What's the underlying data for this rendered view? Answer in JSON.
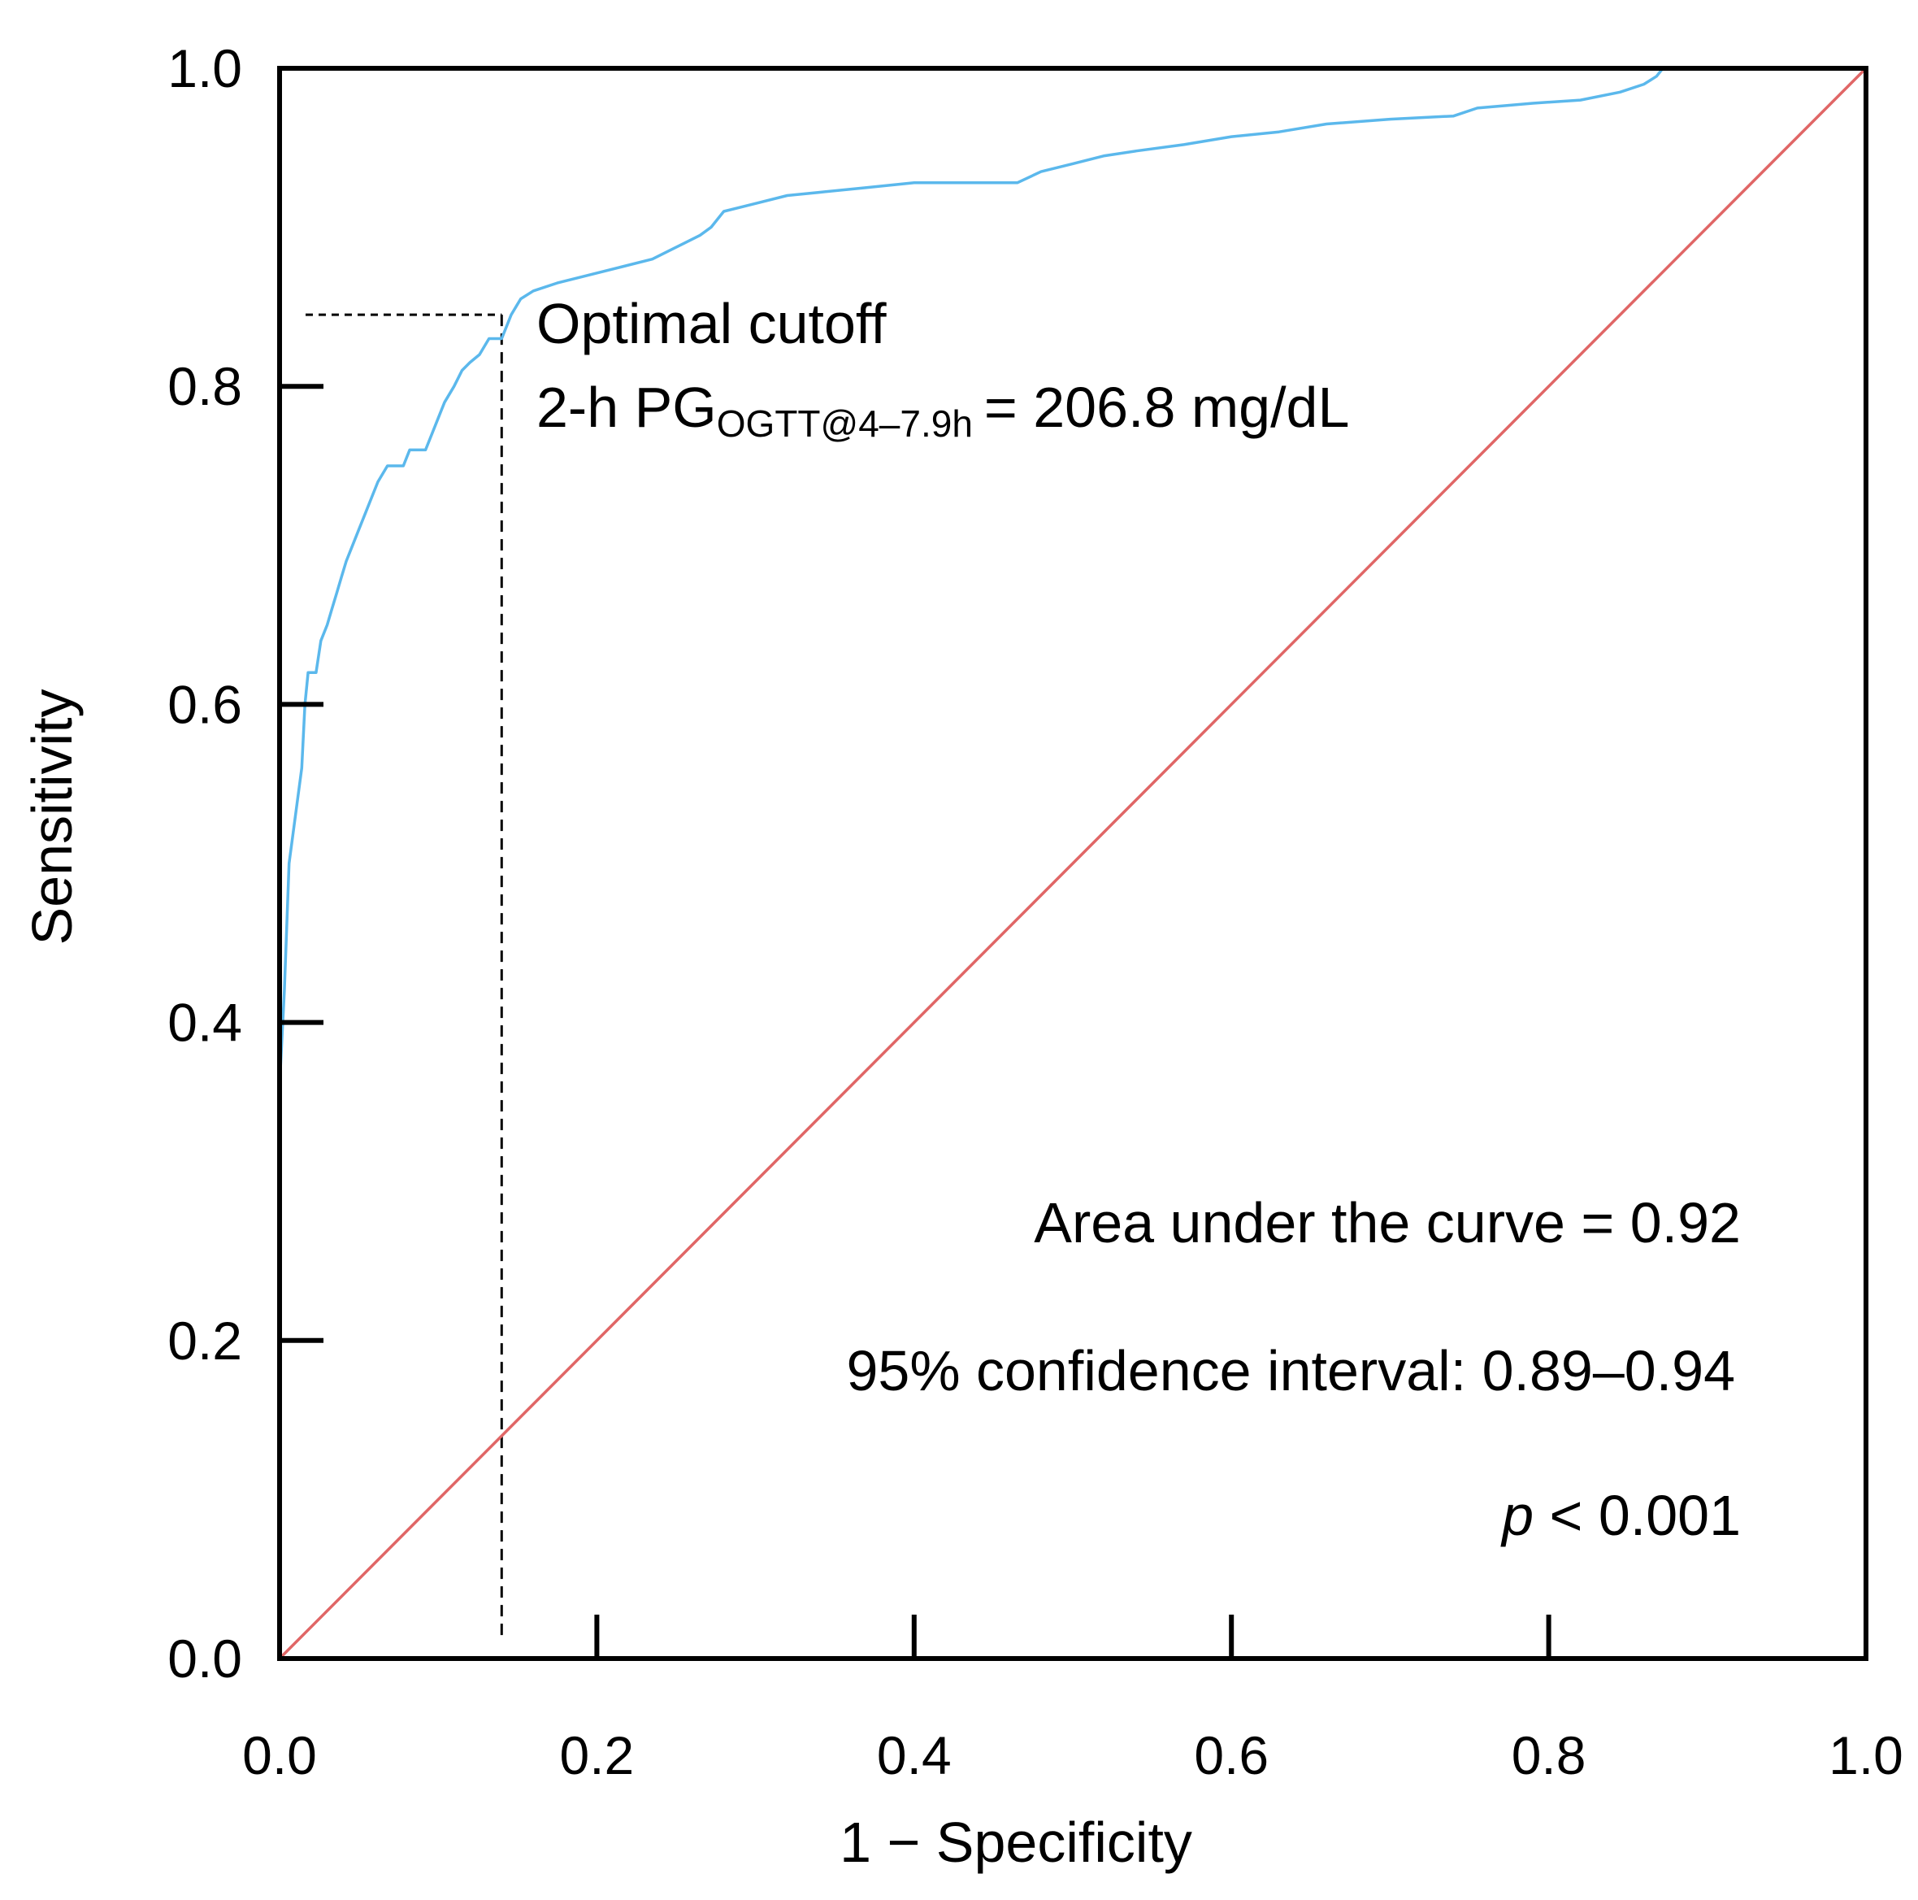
{
  "chart_data": {
    "type": "line",
    "title": "",
    "xlabel": "1 − Specificity",
    "ylabel": "Sensitivity",
    "xlim": [
      0,
      1
    ],
    "ylim": [
      0,
      1
    ],
    "x_ticks": [
      "0.0",
      "0.2",
      "0.4",
      "0.6",
      "0.8",
      "1.0"
    ],
    "y_ticks": [
      "0.0",
      "0.2",
      "0.4",
      "0.6",
      "0.8",
      "1.0"
    ],
    "grid": false,
    "legend": "none",
    "series": [
      {
        "color": "#5bb8ec",
        "points": [
          [
            0.0,
            0.36
          ],
          [
            0.003,
            0.42
          ],
          [
            0.006,
            0.5
          ],
          [
            0.01,
            0.53
          ],
          [
            0.014,
            0.56
          ],
          [
            0.016,
            0.6
          ],
          [
            0.018,
            0.62
          ],
          [
            0.023,
            0.62
          ],
          [
            0.026,
            0.64
          ],
          [
            0.03,
            0.65
          ],
          [
            0.033,
            0.66
          ],
          [
            0.036,
            0.67
          ],
          [
            0.039,
            0.68
          ],
          [
            0.042,
            0.69
          ],
          [
            0.046,
            0.7
          ],
          [
            0.05,
            0.71
          ],
          [
            0.054,
            0.72
          ],
          [
            0.058,
            0.73
          ],
          [
            0.062,
            0.74
          ],
          [
            0.068,
            0.75
          ],
          [
            0.078,
            0.75
          ],
          [
            0.082,
            0.76
          ],
          [
            0.092,
            0.76
          ],
          [
            0.096,
            0.77
          ],
          [
            0.1,
            0.78
          ],
          [
            0.104,
            0.79
          ],
          [
            0.11,
            0.8
          ],
          [
            0.115,
            0.81
          ],
          [
            0.12,
            0.815
          ],
          [
            0.126,
            0.82
          ],
          [
            0.132,
            0.83
          ],
          [
            0.14,
            0.83
          ],
          [
            0.146,
            0.845
          ],
          [
            0.152,
            0.855
          ],
          [
            0.16,
            0.86
          ],
          [
            0.175,
            0.865
          ],
          [
            0.195,
            0.87
          ],
          [
            0.215,
            0.875
          ],
          [
            0.235,
            0.88
          ],
          [
            0.245,
            0.885
          ],
          [
            0.255,
            0.89
          ],
          [
            0.265,
            0.895
          ],
          [
            0.272,
            0.9
          ],
          [
            0.28,
            0.91
          ],
          [
            0.3,
            0.915
          ],
          [
            0.32,
            0.92
          ],
          [
            0.34,
            0.922
          ],
          [
            0.37,
            0.925
          ],
          [
            0.4,
            0.928
          ],
          [
            0.43,
            0.928
          ],
          [
            0.465,
            0.928
          ],
          [
            0.48,
            0.935
          ],
          [
            0.5,
            0.94
          ],
          [
            0.52,
            0.945
          ],
          [
            0.54,
            0.948
          ],
          [
            0.57,
            0.952
          ],
          [
            0.6,
            0.957
          ],
          [
            0.63,
            0.96
          ],
          [
            0.66,
            0.965
          ],
          [
            0.7,
            0.968
          ],
          [
            0.74,
            0.97
          ],
          [
            0.755,
            0.975
          ],
          [
            0.79,
            0.978
          ],
          [
            0.82,
            0.98
          ],
          [
            0.845,
            0.985
          ],
          [
            0.86,
            0.99
          ],
          [
            0.868,
            0.995
          ],
          [
            0.872,
            1.0
          ],
          [
            0.92,
            1.0
          ],
          [
            1.0,
            1.0
          ]
        ]
      },
      {
        "color": "#e06666",
        "points": [
          [
            0,
            0
          ],
          [
            1,
            1
          ]
        ]
      }
    ],
    "cutoff": {
      "x": 0.14,
      "y": 0.845
    },
    "annotations": {
      "cutoff_label": "Optimal cutoff",
      "cutoff_prefix": "2-h PG",
      "cutoff_subscript": "OGTT@4–7.9h",
      "cutoff_value": "= 206.8 mg/dL",
      "auc": "Area under the curve = 0.92",
      "ci": "95% confidence  interval: 0.89–0.94",
      "p_italic": "p",
      "p_rest": " < 0.001"
    },
    "colors": {
      "roc": "#5bb8ec",
      "reference": "#e06666",
      "axes": "#000000"
    }
  }
}
